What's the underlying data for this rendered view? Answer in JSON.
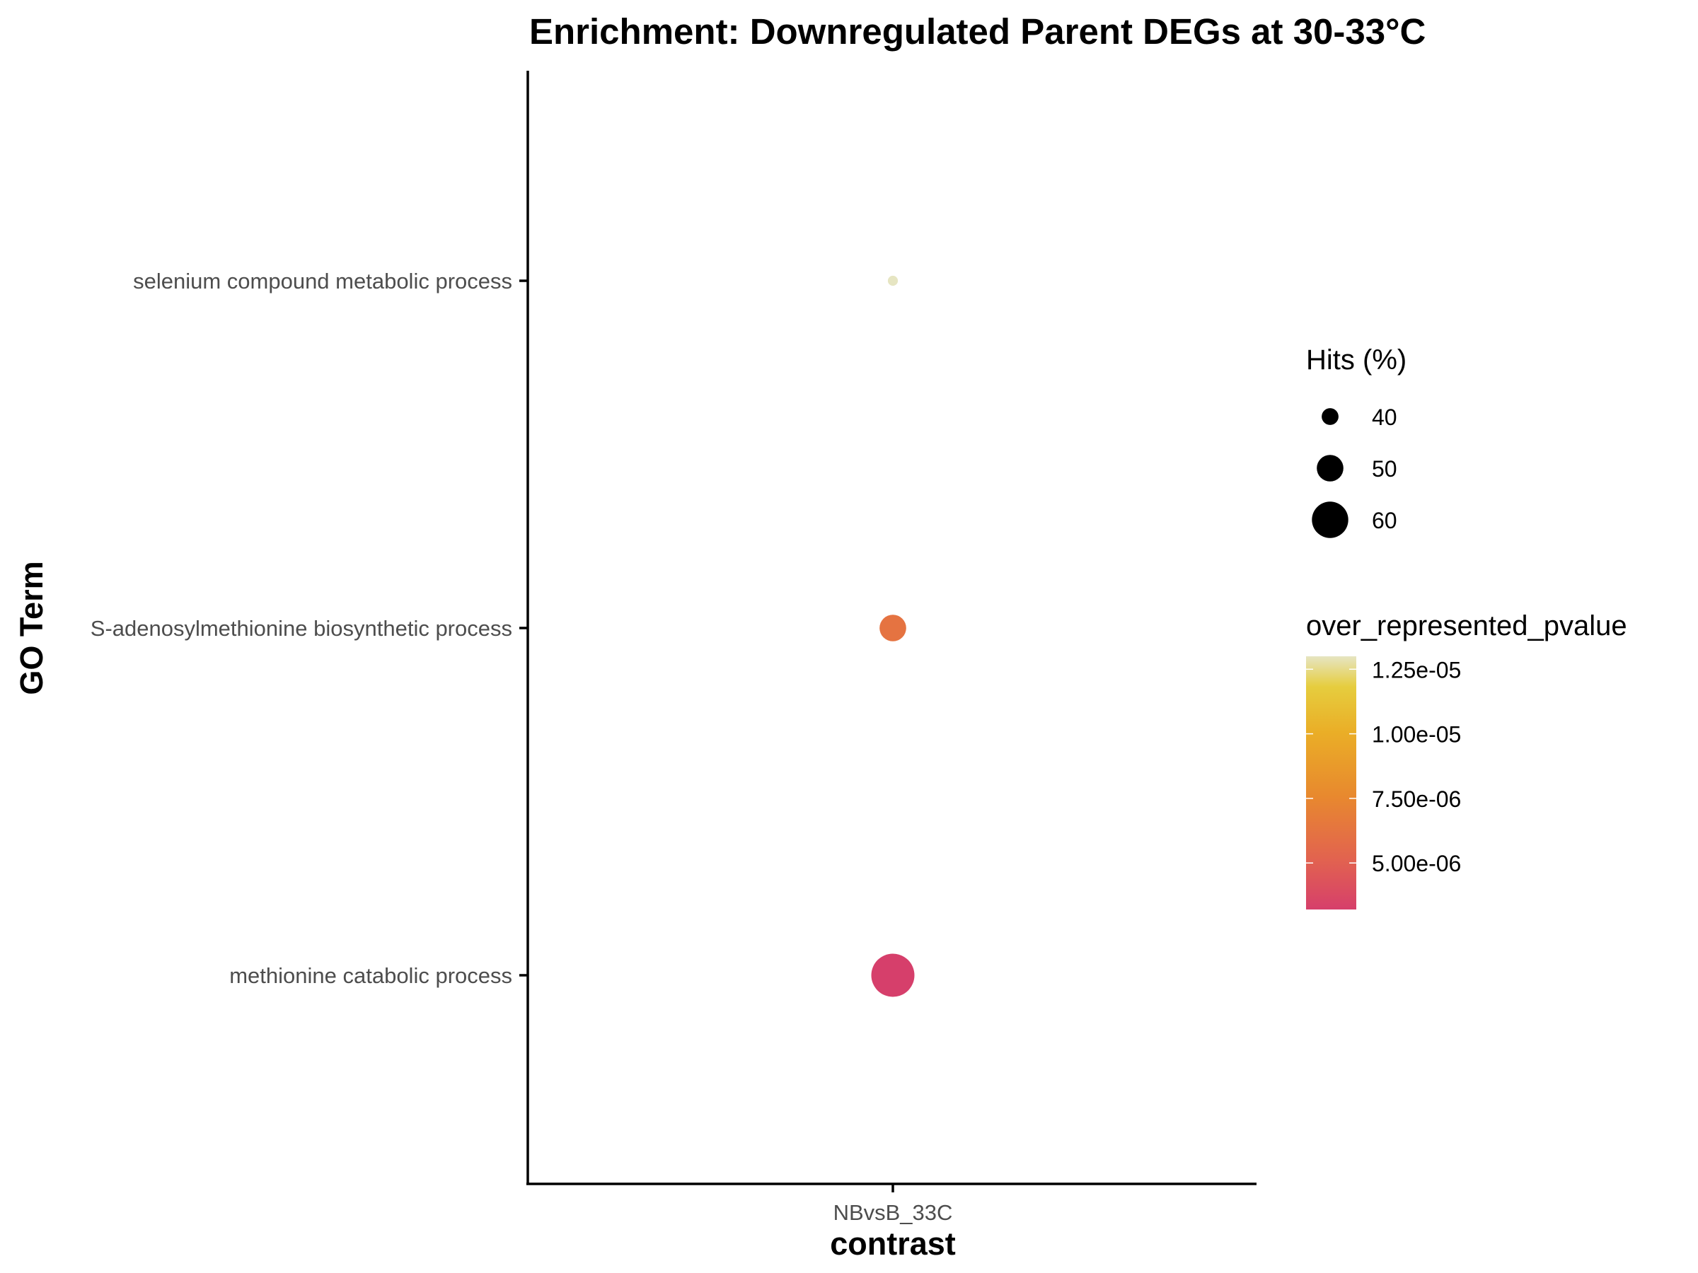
{
  "chart_data": {
    "type": "scatter",
    "title": "Enrichment: Downregulated Parent DEGs at 30-33°C",
    "xlabel": "contrast",
    "ylabel": "GO Term",
    "x_categories": [
      "NBvsB_33C"
    ],
    "y_categories": [
      "methionine catabolic process",
      "S-adenosylmethionine biosynthetic process",
      "selenium compound metabolic process"
    ],
    "points": [
      {
        "x": "NBvsB_33C",
        "y": "selenium compound metabolic process",
        "hits_pct": 33,
        "pvalue": 1.3e-05
      },
      {
        "x": "NBvsB_33C",
        "y": "S-adenosylmethionine biosynthetic process",
        "hits_pct": 50,
        "pvalue": 6.2e-06
      },
      {
        "x": "NBvsB_33C",
        "y": "methionine catabolic process",
        "hits_pct": 67,
        "pvalue": 3.2e-06
      }
    ],
    "size_legend": {
      "title": "Hits (%)",
      "breaks": [
        40,
        50,
        60
      ],
      "labels": [
        "40",
        "50",
        "60"
      ]
    },
    "color_legend": {
      "title": "over_represented_pvalue",
      "breaks": [
        1.25e-05,
        1e-05,
        7.5e-06,
        5e-06
      ],
      "labels": [
        "1.25e-05",
        "1.00e-05",
        "7.50e-06",
        "5.00e-06"
      ],
      "limits": [
        3.2e-06,
        1.3e-05
      ],
      "palette": [
        "#d63f6b",
        "#e2634f",
        "#e8892e",
        "#eaae27",
        "#e6cd3e",
        "#e6e5c2"
      ]
    },
    "grid": false,
    "legend_position": "right"
  }
}
